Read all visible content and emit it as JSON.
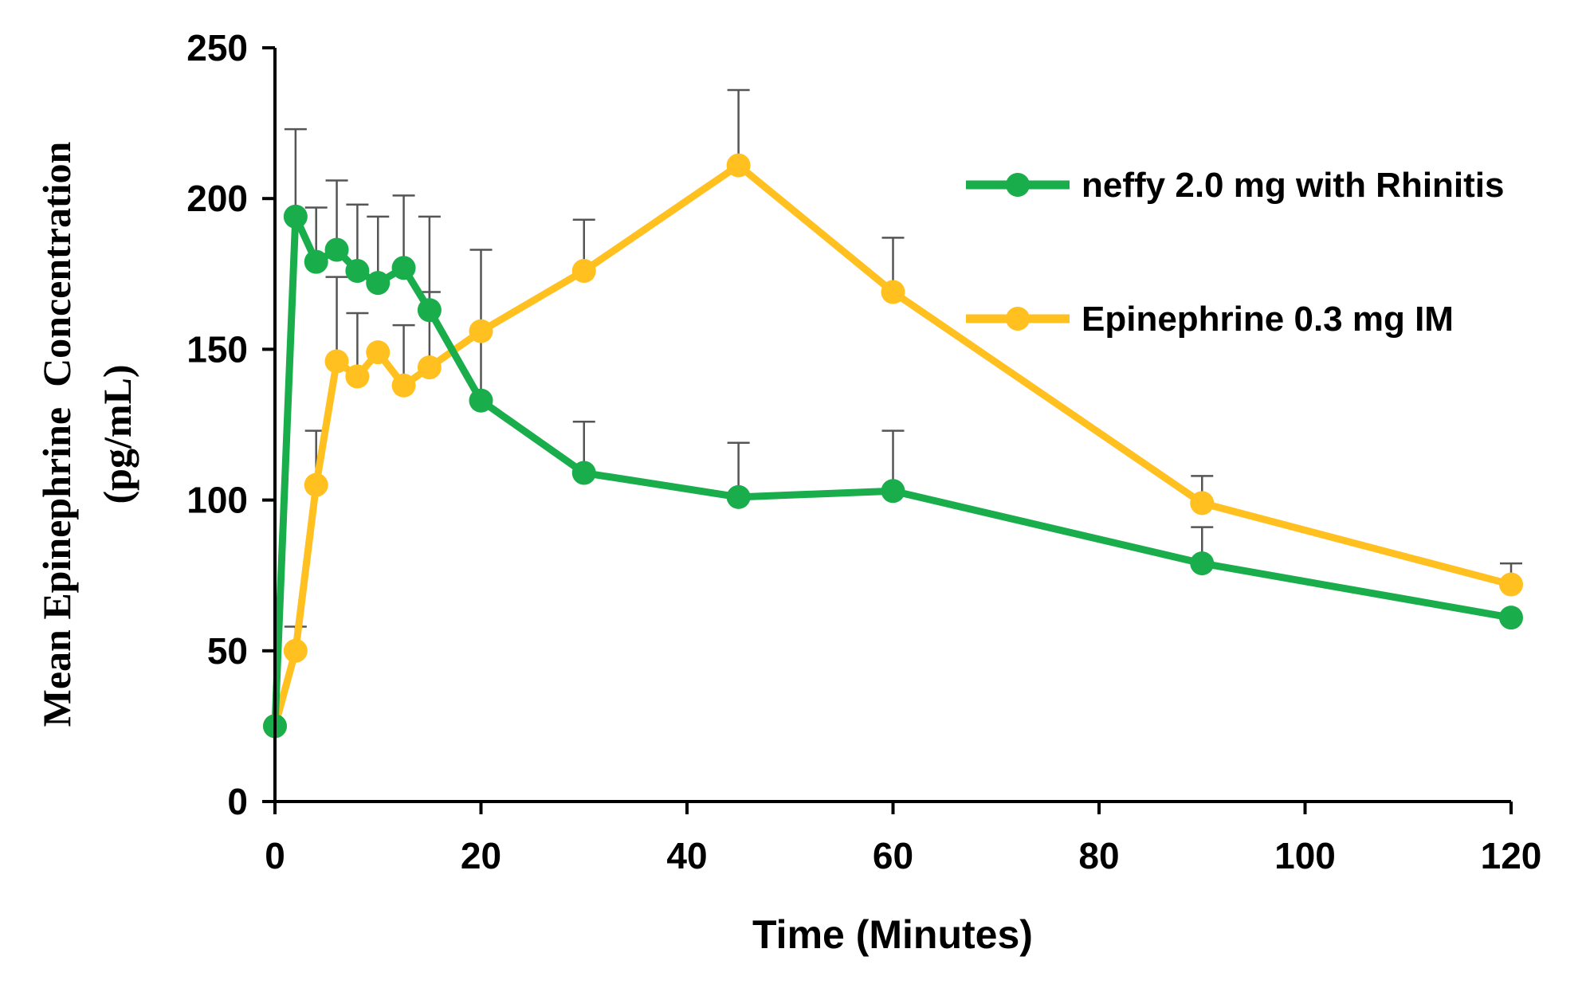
{
  "chart_data": {
    "type": "line",
    "title": "",
    "xlabel": "Time (Minutes)",
    "ylabel_line1": "Mean Epinephrine  Concentration",
    "ylabel_line2": "(pg/mL)",
    "xlim": [
      0,
      120
    ],
    "ylim": [
      0,
      250
    ],
    "xticks": [
      0,
      20,
      40,
      60,
      80,
      100,
      120
    ],
    "yticks": [
      0,
      50,
      100,
      150,
      200,
      250
    ],
    "grid": false,
    "legend_position": "top-right",
    "series": [
      {
        "name": "neffy 2.0 mg with Rhinitis",
        "color": "#1aad4b",
        "x": [
          0,
          2,
          4,
          6,
          8,
          10,
          12.5,
          15,
          20,
          30,
          45,
          60,
          90,
          120
        ],
        "y": [
          25,
          194,
          179,
          183,
          176,
          172,
          177,
          163,
          133,
          109,
          101,
          103,
          79,
          61
        ],
        "err_upper": [
          null,
          29,
          18,
          23,
          22,
          22,
          24,
          31,
          50,
          17,
          18,
          20,
          12,
          null
        ]
      },
      {
        "name": "Epinephrine 0.3 mg IM",
        "color": "#ffc020",
        "x": [
          0,
          2,
          4,
          6,
          8,
          10,
          12.5,
          15,
          20,
          30,
          45,
          60,
          90,
          120
        ],
        "y": [
          25,
          50,
          105,
          146,
          141,
          149,
          138,
          144,
          156,
          176,
          211,
          169,
          99,
          72
        ],
        "err_upper": [
          null,
          8,
          18,
          28,
          21,
          0,
          20,
          25,
          0,
          17,
          25,
          18,
          9,
          7
        ]
      }
    ]
  }
}
